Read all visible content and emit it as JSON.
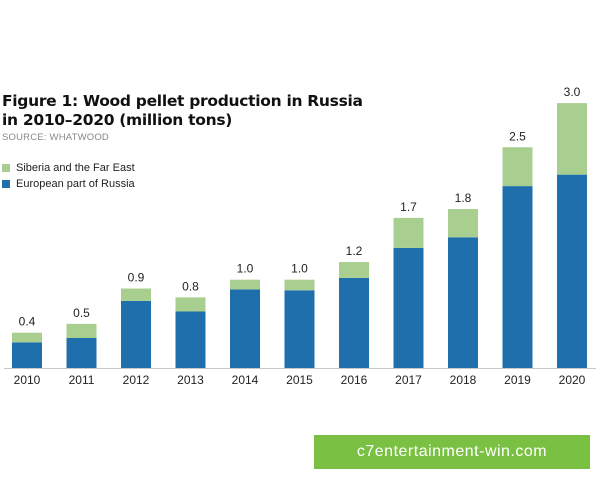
{
  "title_line1": "Figure 1: Wood pellet production in Russia",
  "title_line2": "in 2010–2020 (million tons)",
  "source": "SOURCE: WHATWOOD",
  "watermark": "c7entertainment-win.com",
  "chart_data": {
    "type": "bar",
    "stacked": true,
    "categories": [
      "2010",
      "2011",
      "2012",
      "2013",
      "2014",
      "2015",
      "2016",
      "2017",
      "2018",
      "2019",
      "2020"
    ],
    "series": [
      {
        "name": "European part of Russia",
        "color": "#1f6fad",
        "values": [
          0.29,
          0.34,
          0.76,
          0.64,
          0.89,
          0.88,
          1.02,
          1.36,
          1.48,
          2.06,
          2.19
        ]
      },
      {
        "name": "Siberia and the Far East",
        "color": "#a8cf8f",
        "values": [
          0.11,
          0.16,
          0.14,
          0.16,
          0.11,
          0.12,
          0.18,
          0.34,
          0.32,
          0.44,
          0.81
        ]
      }
    ],
    "totals": [
      "0.4",
      "0.5",
      "0.9",
      "0.8",
      "1.0",
      "1.0",
      "1.2",
      "1.7",
      "1.8",
      "2.5",
      "3.0"
    ],
    "legend_order": [
      "Siberia and the Far East",
      "European part of Russia"
    ],
    "legend_position": "top-left",
    "ylim": [
      0,
      3.0
    ],
    "grid": false
  }
}
